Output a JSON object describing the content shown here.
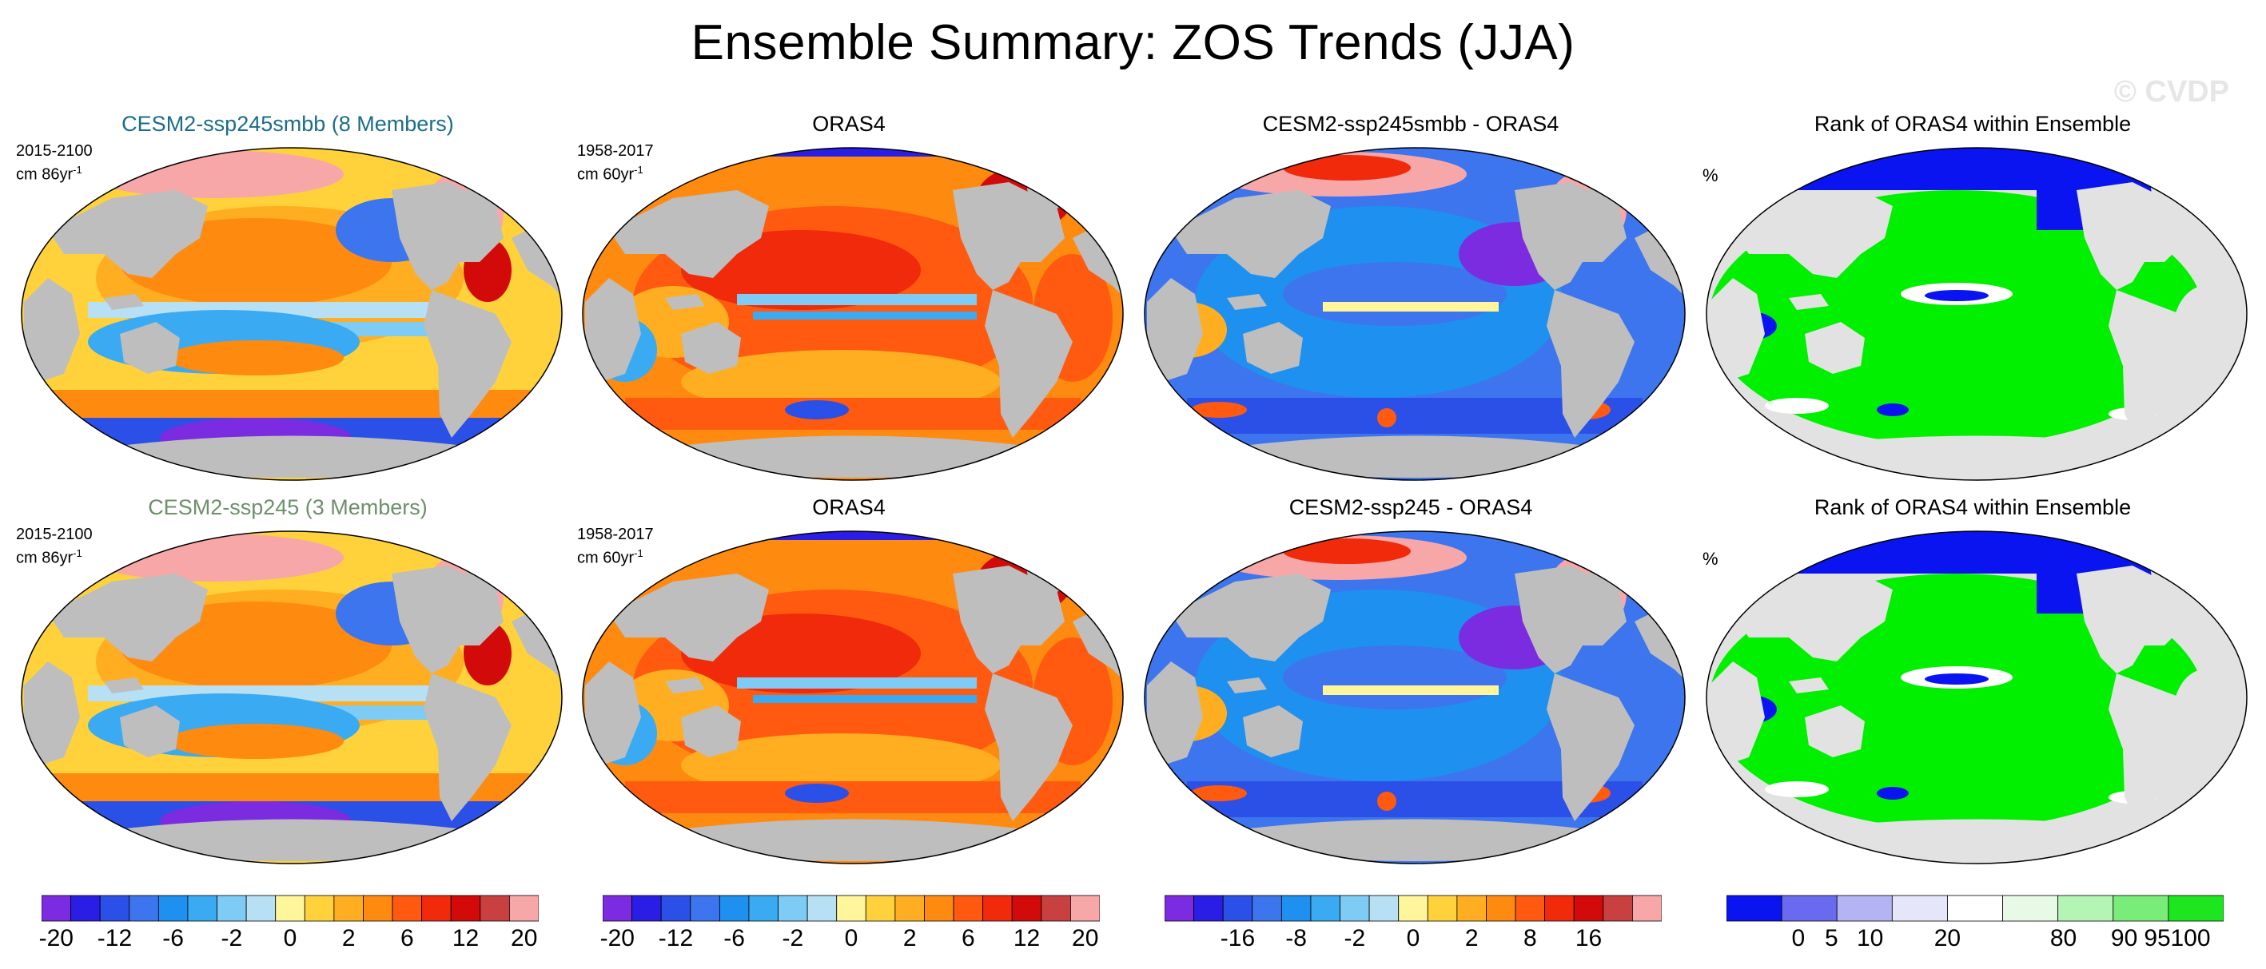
{
  "title": "Ensemble Summary: ZOS Trends (JJA)",
  "watermark": "© CVDP",
  "rows": [
    {
      "model_title": "CESM2-ssp245smbb (8 Members)",
      "model_title_color": "#1a6d8a",
      "model_period": "2015-2100",
      "model_units": "cm 86yr",
      "obs_title": "ORAS4",
      "obs_period": "1958-2017",
      "obs_units": "cm 60yr",
      "diff_title": "CESM2-ssp245smbb - ORAS4",
      "rank_title": "Rank of ORAS4 within Ensemble",
      "rank_units": "%"
    },
    {
      "model_title": "CESM2-ssp245 (3 Members)",
      "model_title_color": "#6d8f6a",
      "model_period": "2015-2100",
      "model_units": "cm 86yr",
      "obs_title": "ORAS4",
      "obs_period": "1958-2017",
      "obs_units": "cm 60yr",
      "diff_title": "CESM2-ssp245 - ORAS4",
      "rank_title": "Rank of ORAS4 within Ensemble",
      "rank_units": "%"
    }
  ],
  "unit_exponent": "-1",
  "colorbars": {
    "trend": {
      "colors": [
        "#7b2be0",
        "#2a1ee6",
        "#2b50e8",
        "#3d75ee",
        "#1e90f0",
        "#3aaaf2",
        "#7ecbf5",
        "#b8e0f5",
        "#fff59a",
        "#ffd23c",
        "#ffae22",
        "#ff8a10",
        "#ff5a10",
        "#f02a0a",
        "#d20a0a",
        "#c84040",
        "#f7a7a7"
      ],
      "labels": [
        "-20",
        "-12",
        "-6",
        "-2",
        "0",
        "2",
        "6",
        "12",
        "20"
      ]
    },
    "diff": {
      "colors": [
        "#7b2be0",
        "#2a1ee6",
        "#2b50e8",
        "#3d75ee",
        "#1e90f0",
        "#3aaaf2",
        "#7ecbf5",
        "#b8e0f5",
        "#fff59a",
        "#ffd23c",
        "#ffae22",
        "#ff8a10",
        "#ff5a10",
        "#f02a0a",
        "#d20a0a",
        "#c84040",
        "#f7a7a7"
      ],
      "labels": [
        "-16",
        "-8",
        "-2",
        "0",
        "2",
        "8",
        "16"
      ]
    },
    "rank": {
      "colors": [
        "#0a14f0",
        "#6a6af0",
        "#b4b4f4",
        "#e6e6fa",
        "#ffffff",
        "#e6fae6",
        "#b4f4b4",
        "#7aec7a",
        "#1ee61e"
      ],
      "labels": [
        "0",
        "5",
        "10",
        "20",
        "80",
        "90",
        "95",
        "100"
      ]
    }
  },
  "colors": {
    "land": "#bebebe",
    "ocean_warm": "#ff6a1a",
    "ocean_cool": "#3c8ce6",
    "rank_green": "#00f000",
    "rank_blue": "#0a14f0",
    "ice": "#f7a7a7"
  }
}
